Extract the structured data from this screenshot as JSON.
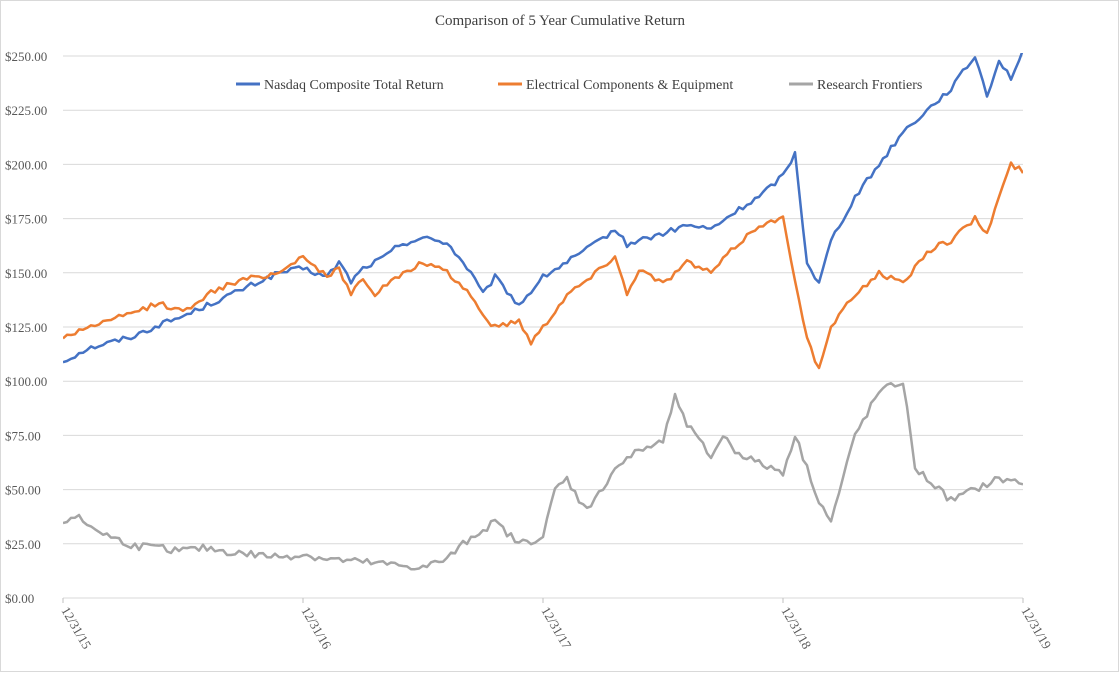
{
  "chart_data": {
    "type": "line",
    "title": "Comparison  of  5 Year Cumulative  Return",
    "xlabel": "",
    "ylabel": "",
    "ylim": [
      0,
      250
    ],
    "y_ticks": [
      "$0.00",
      "$25.00",
      "$50.00",
      "$75.00",
      "$100.00",
      "$125.00",
      "$150.00",
      "$175.00",
      "$200.00",
      "$225.00",
      "$250.00"
    ],
    "x_ticks": [
      "12/31/15",
      "12/31/16",
      "12/31/17",
      "12/31/18",
      "12/31/19"
    ],
    "x_range": [
      0,
      4
    ],
    "grid": true,
    "legend_position": "top",
    "series": [
      {
        "name": "Nasdaq Composite Total Return",
        "color": "#4472c4",
        "x": [
          0,
          0.1,
          0.2,
          0.3,
          0.4,
          0.5,
          0.6,
          0.7,
          0.8,
          0.9,
          1.0,
          1.1,
          1.15,
          1.2,
          1.25,
          1.3,
          1.35,
          1.4,
          1.5,
          1.6,
          1.7,
          1.75,
          1.8,
          1.9,
          2.0,
          2.1,
          2.2,
          2.3,
          2.35,
          2.4,
          2.5,
          2.6,
          2.7,
          2.8,
          2.9,
          3.0,
          3.05,
          3.1,
          3.15,
          3.2,
          3.3,
          3.4,
          3.5,
          3.6,
          3.7,
          3.8,
          3.85,
          3.9,
          3.95,
          4.0
        ],
        "values": [
          109,
          115,
          118,
          121,
          126,
          130,
          135,
          140,
          145,
          150,
          152,
          148,
          155,
          146,
          152,
          155,
          158,
          163,
          166,
          164,
          150,
          140,
          148,
          135,
          148,
          155,
          162,
          170,
          163,
          165,
          168,
          172,
          170,
          178,
          185,
          195,
          205,
          155,
          145,
          165,
          185,
          200,
          215,
          225,
          235,
          250,
          232,
          248,
          240,
          252
        ]
      },
      {
        "name": "Electrical Components & Equipment",
        "color": "#ed7d31",
        "x": [
          0,
          0.1,
          0.2,
          0.3,
          0.4,
          0.5,
          0.6,
          0.7,
          0.8,
          0.9,
          1.0,
          1.1,
          1.15,
          1.2,
          1.25,
          1.3,
          1.35,
          1.4,
          1.5,
          1.6,
          1.7,
          1.75,
          1.8,
          1.9,
          1.95,
          2.0,
          2.1,
          2.2,
          2.3,
          2.35,
          2.4,
          2.5,
          2.6,
          2.7,
          2.8,
          2.9,
          3.0,
          3.1,
          3.15,
          3.2,
          3.3,
          3.4,
          3.5,
          3.6,
          3.7,
          3.8,
          3.85,
          3.9,
          3.95,
          4.0
        ],
        "values": [
          120,
          125,
          128,
          132,
          136,
          132,
          140,
          145,
          148,
          150,
          158,
          148,
          152,
          140,
          148,
          140,
          145,
          148,
          155,
          150,
          140,
          130,
          125,
          128,
          118,
          125,
          140,
          148,
          158,
          140,
          152,
          145,
          155,
          150,
          162,
          172,
          175,
          120,
          105,
          125,
          140,
          150,
          145,
          160,
          165,
          175,
          168,
          185,
          200,
          197
        ]
      },
      {
        "name": "Research Frontiers",
        "color": "#a5a5a5",
        "x": [
          0,
          0.05,
          0.1,
          0.2,
          0.3,
          0.4,
          0.5,
          0.6,
          0.7,
          0.8,
          0.9,
          1.0,
          1.1,
          1.2,
          1.3,
          1.4,
          1.5,
          1.6,
          1.7,
          1.8,
          1.9,
          2.0,
          2.05,
          2.1,
          2.15,
          2.2,
          2.3,
          2.4,
          2.5,
          2.55,
          2.6,
          2.7,
          2.75,
          2.8,
          2.9,
          3.0,
          3.05,
          3.1,
          3.15,
          3.2,
          3.25,
          3.3,
          3.4,
          3.5,
          3.55,
          3.6,
          3.7,
          3.8,
          3.9,
          4.0
        ],
        "values": [
          35,
          38,
          34,
          28,
          24,
          23,
          22,
          23,
          21,
          20,
          19,
          20,
          18,
          17,
          16,
          15,
          14,
          18,
          28,
          35,
          25,
          28,
          50,
          55,
          45,
          42,
          60,
          68,
          72,
          95,
          80,
          65,
          75,
          68,
          62,
          58,
          75,
          60,
          45,
          35,
          55,
          75,
          95,
          100,
          60,
          55,
          45,
          50,
          55,
          53
        ]
      }
    ]
  }
}
